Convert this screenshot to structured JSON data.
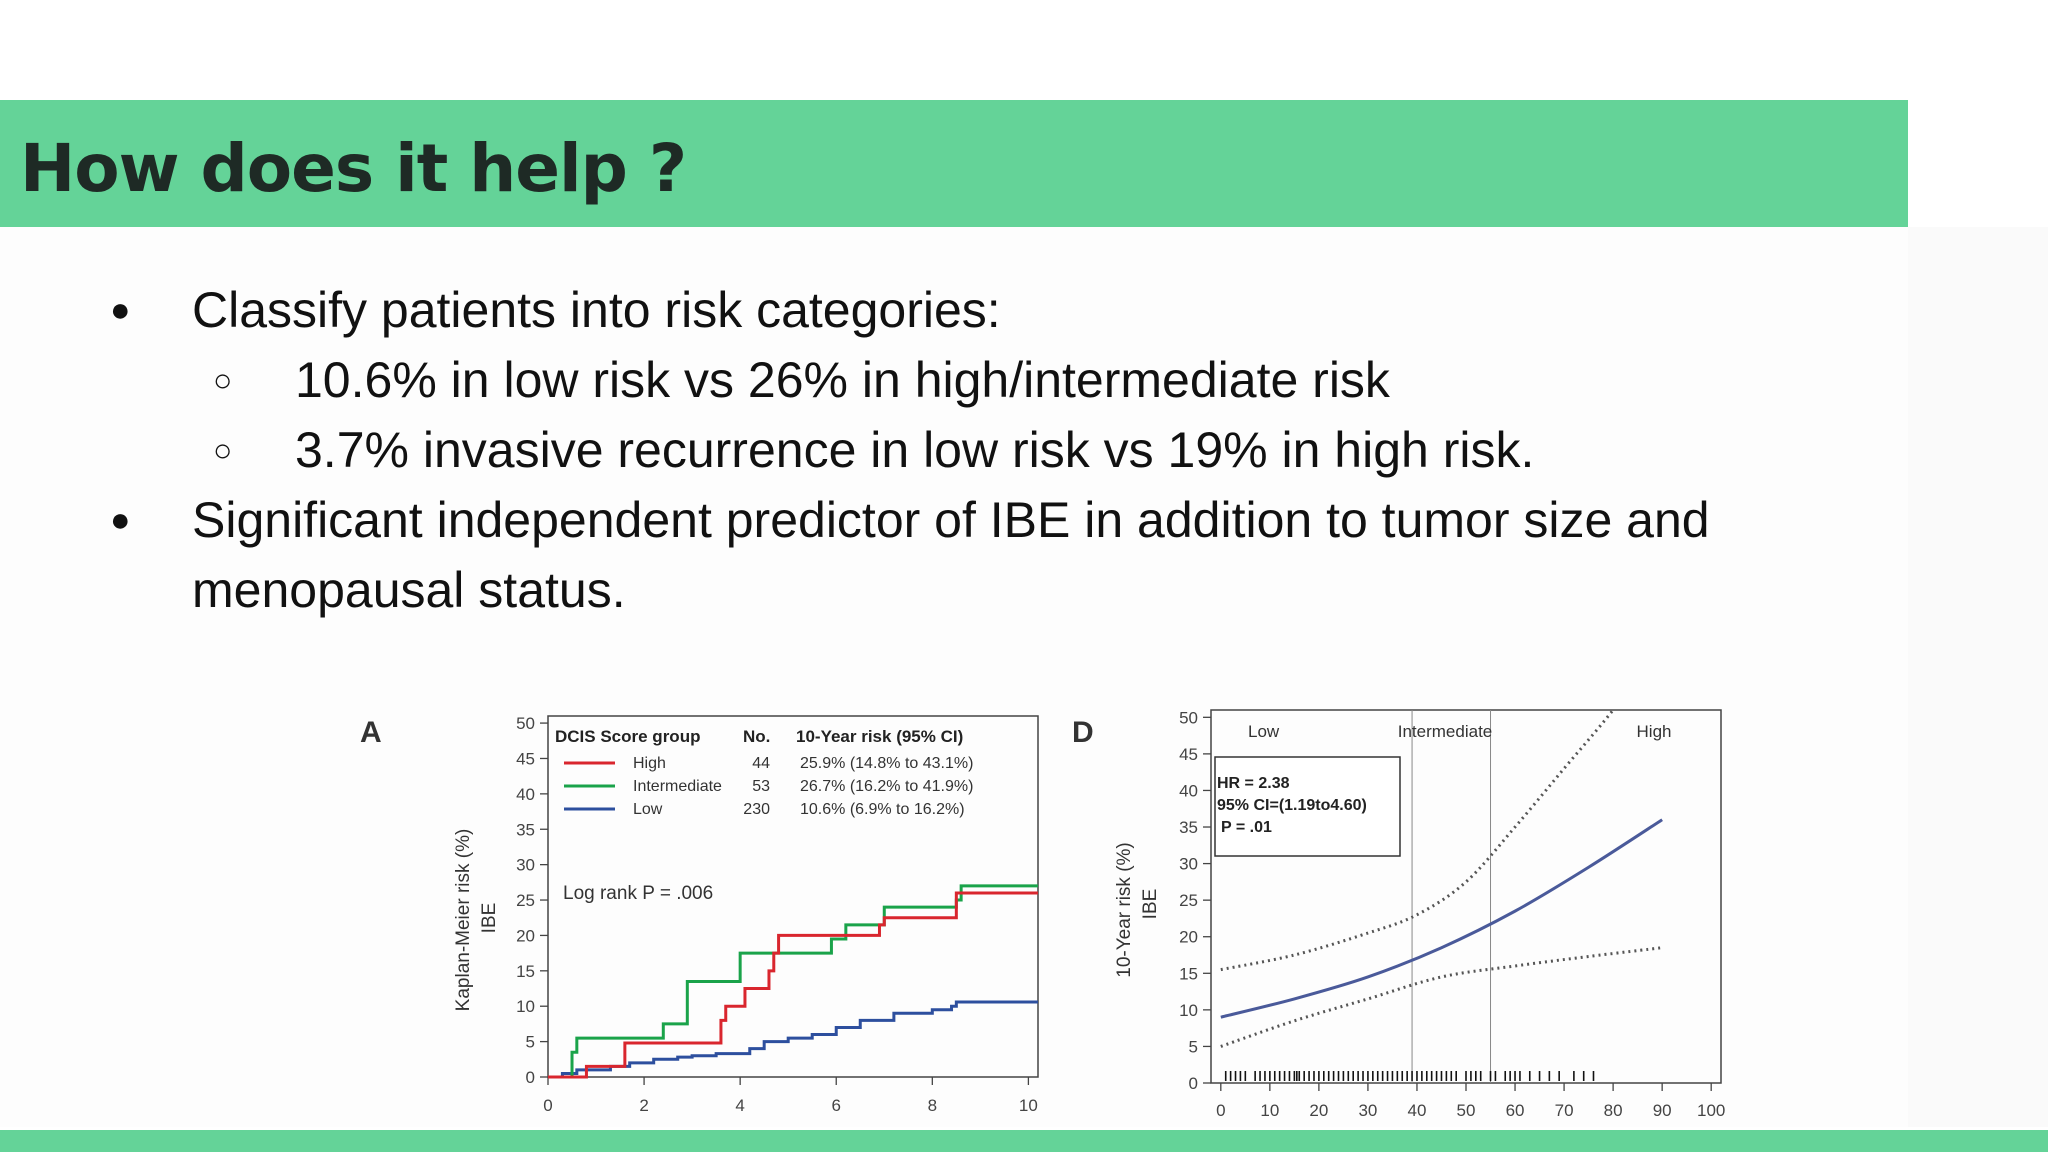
{
  "slide": {
    "title": "How does it help ?",
    "bullets": [
      {
        "marker": "●",
        "text": "Classify patients into risk categories:"
      },
      {
        "marker": "○",
        "text": "10.6% in low risk vs 26% in high/intermediate risk"
      },
      {
        "marker": "○",
        "text": "3.7% invasive recurrence in low risk vs 19% in high risk."
      },
      {
        "marker": "●",
        "text": "Significant independent predictor of IBE in addition to tumor size and"
      },
      {
        "marker": "",
        "text": "menopausal status."
      }
    ]
  },
  "colors": {
    "band": "#64d398",
    "high": "#d9262e",
    "intermediate": "#1aa34a",
    "low": "#2d4f9e",
    "curve_d": "#4a5a9a"
  },
  "chart_data": [
    {
      "type": "line",
      "panel_label": "A",
      "ylabel": [
        "Kaplan-Meier risk (%)",
        "IBE"
      ],
      "xticks": [
        0,
        2,
        4,
        6,
        8,
        10
      ],
      "yticks": [
        0,
        5,
        10,
        15,
        20,
        25,
        30,
        35,
        40,
        45,
        50
      ],
      "xlim": [
        0,
        10.2
      ],
      "ylim": [
        0,
        51
      ],
      "legend_header": [
        "DCIS Score group",
        "No.",
        "10-Year risk (95% CI)"
      ],
      "annotation": "Log rank P = .006",
      "series": [
        {
          "name": "High",
          "n": "44",
          "risk": "25.9% (14.8% to 43.1%)",
          "color": "#d9262e",
          "x": [
            0,
            0.5,
            0.8,
            1.5,
            1.6,
            1.6,
            3.5,
            3.6,
            3.7,
            4.1,
            4.1,
            4.5,
            4.6,
            4.7,
            4.8,
            5.2,
            5.7,
            6.7,
            6.9,
            7.0,
            8.4,
            8.5,
            10.2
          ],
          "y": [
            0,
            0,
            1.5,
            1.5,
            3.5,
            4.8,
            4.8,
            8,
            10,
            10,
            12.5,
            12.5,
            15,
            17.5,
            20,
            20,
            20,
            20,
            21.5,
            22.5,
            22.5,
            26,
            26
          ]
        },
        {
          "name": "Intermediate",
          "n": "53",
          "risk": "26.7% (16.2% to 41.9%)",
          "color": "#1aa34a",
          "x": [
            0,
            0.4,
            0.5,
            0.6,
            2.4,
            2.9,
            4.0,
            5.5,
            5.9,
            6.2,
            6.5,
            7.0,
            7.1,
            8.5,
            8.6,
            10.2
          ],
          "y": [
            0,
            0,
            3.5,
            5.5,
            7.5,
            13.5,
            17.5,
            17.5,
            19.5,
            21.5,
            21.5,
            24,
            24,
            25,
            27,
            27
          ]
        },
        {
          "name": "Low",
          "n": "230",
          "risk": "10.6% (6.9% to 16.2%)",
          "color": "#2d4f9e",
          "x": [
            0,
            0.3,
            0.6,
            1.3,
            1.7,
            2.2,
            2.7,
            3.0,
            3.5,
            4.2,
            4.5,
            5.0,
            5.5,
            6.0,
            6.5,
            7.2,
            8.0,
            8.4,
            8.5,
            10.2
          ],
          "y": [
            0,
            0.5,
            1.0,
            1.5,
            2.0,
            2.5,
            2.8,
            3.0,
            3.3,
            4.0,
            5.0,
            5.5,
            6.0,
            7.0,
            8.0,
            9.0,
            9.5,
            10.0,
            10.6,
            10.6
          ]
        }
      ]
    },
    {
      "type": "line",
      "panel_label": "D",
      "ylabel": [
        "10-Year risk (%)",
        "IBE"
      ],
      "xticks": [
        0,
        10,
        20,
        30,
        40,
        50,
        60,
        70,
        80,
        90,
        100
      ],
      "yticks": [
        0,
        5,
        10,
        15,
        20,
        25,
        30,
        35,
        40,
        45,
        50
      ],
      "xlim": [
        -2,
        102
      ],
      "ylim": [
        0,
        51
      ],
      "region_labels": [
        "Low",
        "Intermediate",
        "High"
      ],
      "region_cutoffs": [
        39,
        55
      ],
      "stats": [
        "HR = 2.38",
        "95% CI=(1.19to4.60)",
        "P = .01"
      ],
      "series": [
        {
          "name": "estimate",
          "x": [
            0,
            15,
            30,
            45,
            60,
            75,
            90
          ],
          "y": [
            9,
            11.5,
            14.5,
            18.5,
            23.5,
            29.5,
            36
          ]
        },
        {
          "name": "upper",
          "x": [
            0,
            15,
            30,
            40,
            50,
            60,
            70,
            80,
            90
          ],
          "y": [
            15.5,
            17.5,
            20.5,
            23,
            27.5,
            35,
            43,
            51,
            60
          ]
        },
        {
          "name": "lower",
          "x": [
            0,
            15,
            30,
            45,
            60,
            75,
            90
          ],
          "y": [
            5,
            8.5,
            11.5,
            14.5,
            16,
            17.3,
            18.5
          ]
        }
      ],
      "rug": [
        1,
        2,
        3,
        4,
        5,
        7,
        8,
        9,
        10,
        11,
        12,
        13,
        14,
        15,
        15.5,
        16,
        17,
        18,
        19,
        20,
        21,
        22,
        23,
        24,
        25,
        26,
        27,
        28,
        29,
        30,
        31,
        32,
        33,
        34,
        35,
        36,
        37,
        38,
        39,
        40,
        41,
        42,
        43,
        44,
        45,
        46,
        47,
        48,
        50,
        51,
        52,
        53,
        55,
        56,
        58,
        59,
        60,
        61,
        63,
        65,
        67,
        69,
        72,
        74,
        76
      ]
    }
  ]
}
